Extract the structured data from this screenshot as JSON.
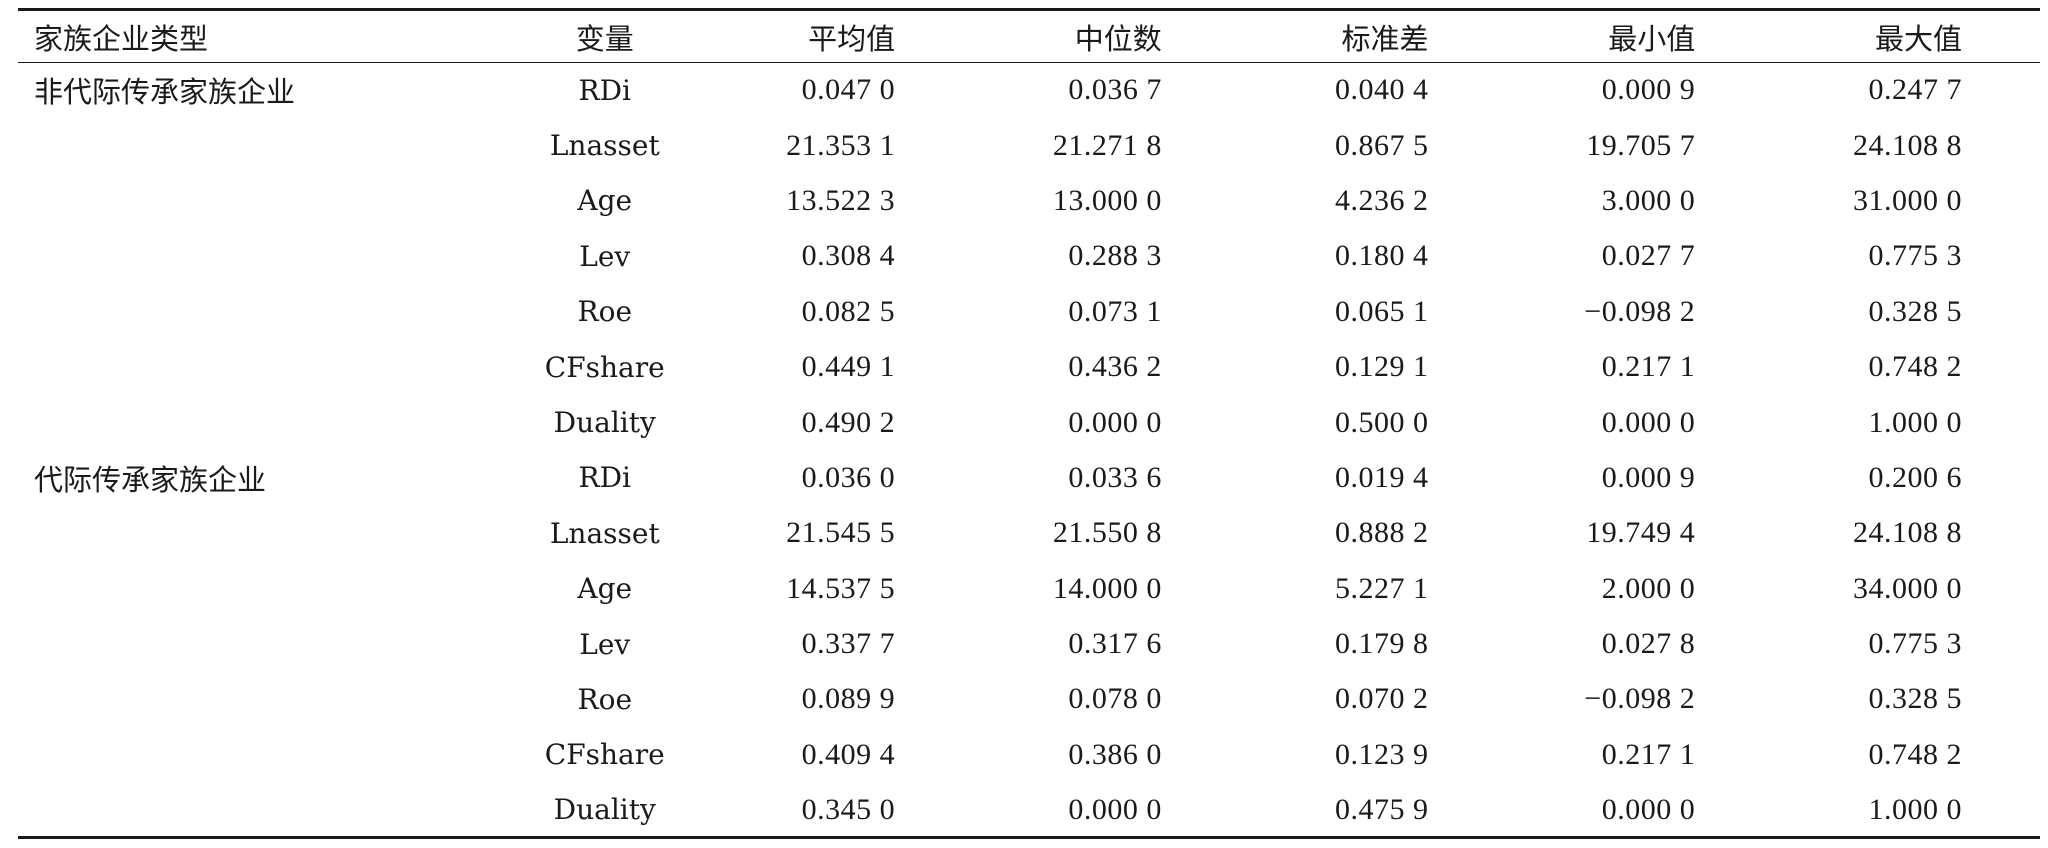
{
  "table": {
    "headers": [
      "家族企业类型",
      "变量",
      "平均值",
      "中位数",
      "标准差",
      "最小值",
      "最大值"
    ],
    "groups": [
      {
        "name": "非代际传承家族企业",
        "rows": [
          {
            "variable": "RDi",
            "mean": "0.047 0",
            "median": "0.036 7",
            "sd": "0.040 4",
            "min": "0.000 9",
            "max": "0.247 7"
          },
          {
            "variable": "Lnasset",
            "mean": "21.353 1",
            "median": "21.271 8",
            "sd": "0.867 5",
            "min": "19.705 7",
            "max": "24.108 8"
          },
          {
            "variable": "Age",
            "mean": "13.522 3",
            "median": "13.000 0",
            "sd": "4.236 2",
            "min": "3.000 0",
            "max": "31.000 0"
          },
          {
            "variable": "Lev",
            "mean": "0.308 4",
            "median": "0.288 3",
            "sd": "0.180 4",
            "min": "0.027 7",
            "max": "0.775 3"
          },
          {
            "variable": "Roe",
            "mean": "0.082 5",
            "median": "0.073 1",
            "sd": "0.065 1",
            "min": "−0.098 2",
            "max": "0.328 5"
          },
          {
            "variable": "CFshare",
            "mean": "0.449 1",
            "median": "0.436 2",
            "sd": "0.129 1",
            "min": "0.217 1",
            "max": "0.748 2"
          },
          {
            "variable": "Duality",
            "mean": "0.490 2",
            "median": "0.000 0",
            "sd": "0.500 0",
            "min": "0.000 0",
            "max": "1.000 0"
          }
        ]
      },
      {
        "name": "代际传承家族企业",
        "rows": [
          {
            "variable": "RDi",
            "mean": "0.036 0",
            "median": "0.033 6",
            "sd": "0.019 4",
            "min": "0.000 9",
            "max": "0.200 6"
          },
          {
            "variable": "Lnasset",
            "mean": "21.545 5",
            "median": "21.550 8",
            "sd": "0.888 2",
            "min": "19.749 4",
            "max": "24.108 8"
          },
          {
            "variable": "Age",
            "mean": "14.537 5",
            "median": "14.000 0",
            "sd": "5.227 1",
            "min": "2.000 0",
            "max": "34.000 0"
          },
          {
            "variable": "Lev",
            "mean": "0.337 7",
            "median": "0.317 6",
            "sd": "0.179 8",
            "min": "0.027 8",
            "max": "0.775 3"
          },
          {
            "variable": "Roe",
            "mean": "0.089 9",
            "median": "0.078 0",
            "sd": "0.070 2",
            "min": "−0.098 2",
            "max": "0.328 5"
          },
          {
            "variable": "CFshare",
            "mean": "0.409 4",
            "median": "0.386 0",
            "sd": "0.123 9",
            "min": "0.217 1",
            "max": "0.748 2"
          },
          {
            "variable": "Duality",
            "mean": "0.345 0",
            "median": "0.000 0",
            "sd": "0.475 9",
            "min": "0.000 0",
            "max": "1.000 0"
          }
        ]
      }
    ]
  }
}
